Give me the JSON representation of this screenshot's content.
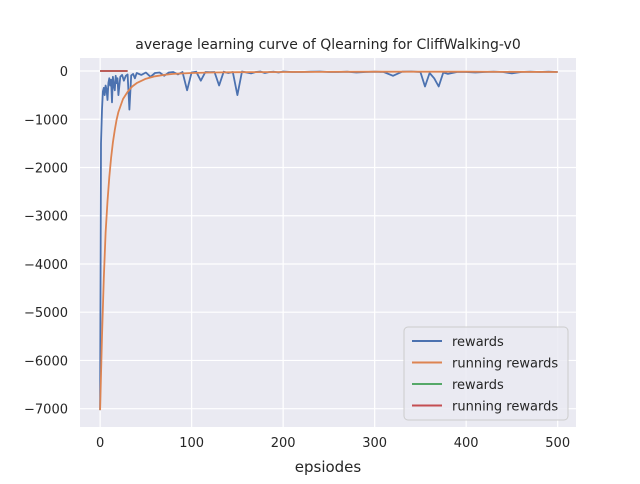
{
  "chart_data": {
    "type": "line",
    "title": "average learning curve of Qlearning for CliffWalking-v0",
    "xlabel": "epsiodes",
    "ylabel": "",
    "xlim": [
      -22,
      520
    ],
    "ylim": [
      -7380,
      270
    ],
    "xticks": [
      0,
      100,
      200,
      300,
      400,
      500
    ],
    "yticks": [
      0,
      -1000,
      -2000,
      -3000,
      -4000,
      -5000,
      -6000,
      -7000
    ],
    "xtick_labels": [
      "0",
      "100",
      "200",
      "300",
      "400",
      "500"
    ],
    "ytick_labels": [
      "0",
      "−1000",
      "−2000",
      "−3000",
      "−4000",
      "−5000",
      "−6000",
      "−7000"
    ],
    "grid": true,
    "legend_position": "lower-right",
    "series": [
      {
        "name": "rewards",
        "color": "#4c72b0",
        "x": [
          0,
          1,
          2,
          3,
          4,
          5,
          6,
          7,
          8,
          9,
          10,
          11,
          12,
          13,
          14,
          15,
          16,
          17,
          18,
          19,
          20,
          22,
          24,
          26,
          28,
          30,
          32,
          34,
          36,
          38,
          40,
          45,
          50,
          55,
          60,
          65,
          70,
          75,
          80,
          85,
          90,
          95,
          100,
          105,
          110,
          115,
          120,
          125,
          130,
          135,
          140,
          145,
          150,
          155,
          160,
          165,
          170,
          175,
          180,
          185,
          190,
          195,
          200,
          210,
          220,
          230,
          240,
          250,
          260,
          270,
          280,
          290,
          300,
          310,
          320,
          330,
          340,
          350,
          355,
          360,
          365,
          370,
          375,
          380,
          390,
          400,
          410,
          420,
          430,
          440,
          450,
          460,
          470,
          480,
          490,
          500
        ],
        "y": [
          -7030,
          -1500,
          -800,
          -420,
          -350,
          -500,
          -300,
          -380,
          -600,
          -250,
          -150,
          -300,
          -180,
          -650,
          -120,
          -300,
          -400,
          -100,
          -250,
          -150,
          -500,
          -120,
          -80,
          -200,
          -100,
          -70,
          -800,
          -90,
          -60,
          -150,
          -40,
          -80,
          -30,
          -120,
          -40,
          -30,
          -100,
          -30,
          -20,
          -70,
          -20,
          -400,
          -30,
          -15,
          -200,
          -20,
          -25,
          -20,
          -300,
          -15,
          -40,
          -20,
          -500,
          -10,
          -30,
          -50,
          -20,
          -10,
          -40,
          -20,
          -15,
          -30,
          -10,
          -20,
          -20,
          -15,
          -10,
          -20,
          -20,
          -15,
          -30,
          -20,
          -15,
          -20,
          -100,
          -15,
          -10,
          -20,
          -320,
          -40,
          -150,
          -320,
          -30,
          -60,
          -20,
          -20,
          -30,
          -20,
          -15,
          -20,
          -50,
          -20,
          -15,
          -20,
          -15,
          -20
        ]
      },
      {
        "name": "running rewards",
        "color": "#dd8452",
        "x": [
          0,
          2,
          4,
          6,
          8,
          10,
          12,
          14,
          16,
          18,
          20,
          25,
          30,
          35,
          40,
          50,
          60,
          70,
          80,
          100,
          120,
          150,
          200,
          300,
          400,
          500
        ],
        "y": [
          -7030,
          -5500,
          -4300,
          -3350,
          -2700,
          -2200,
          -1800,
          -1480,
          -1220,
          -1010,
          -850,
          -580,
          -430,
          -320,
          -250,
          -160,
          -110,
          -80,
          -60,
          -40,
          -30,
          -25,
          -20,
          -15,
          -15,
          -20
        ]
      },
      {
        "name": "rewards",
        "color": "#55a868",
        "x": [
          0,
          30
        ],
        "y": [
          0,
          0
        ]
      },
      {
        "name": "running rewards",
        "color": "#c44e52",
        "x": [
          0,
          30
        ],
        "y": [
          0,
          0
        ]
      }
    ]
  }
}
